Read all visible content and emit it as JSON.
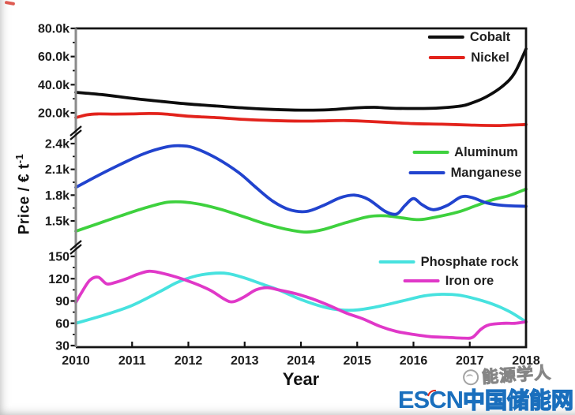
{
  "chart_data": {
    "type": "line",
    "title": "",
    "xlabel": "Year",
    "ylabel": "Price / € t",
    "ylabel_superscript": "-1",
    "grid": false,
    "legend_position": "inside top-right of each panel",
    "x_axis": {
      "min": 2010,
      "max": 2018,
      "tick_values": [
        2010,
        2011,
        2012,
        2013,
        2014,
        2015,
        2016,
        2017,
        2018
      ],
      "tick_labels": [
        "2010",
        "2011",
        "2012",
        "2013",
        "2014",
        "2015",
        "2016",
        "2017",
        "2018"
      ]
    },
    "axis_breaks": 2,
    "panels": [
      {
        "name": "top-panel",
        "ylim": [
          10000,
          80000
        ],
        "y_ticks": [
          {
            "value": 80000,
            "label": "80.0k"
          },
          {
            "value": 60000,
            "label": "60.0k"
          },
          {
            "value": 40000,
            "label": "40.0k"
          },
          {
            "value": 20000,
            "label": "20.0k"
          }
        ],
        "series": [
          {
            "name": "Cobalt",
            "color": "#0d0d0d",
            "points": [
              [
                2010,
                34600
              ],
              [
                2010.5,
                32800
              ],
              [
                2011,
                30300
              ],
              [
                2011.5,
                28200
              ],
              [
                2012,
                26300
              ],
              [
                2012.5,
                24800
              ],
              [
                2013,
                23400
              ],
              [
                2013.5,
                22400
              ],
              [
                2014,
                21900
              ],
              [
                2014.5,
                22200
              ],
              [
                2015,
                23600
              ],
              [
                2015.3,
                23900
              ],
              [
                2015.6,
                23300
              ],
              [
                2016,
                23100
              ],
              [
                2016.4,
                23300
              ],
              [
                2016.8,
                24600
              ],
              [
                2017,
                26500
              ],
              [
                2017.3,
                31500
              ],
              [
                2017.6,
                39500
              ],
              [
                2017.8,
                48500
              ],
              [
                2018,
                65400
              ]
            ]
          },
          {
            "name": "Nickel",
            "color": "#e2231c",
            "points": [
              [
                2010,
                16600
              ],
              [
                2010.2,
                18600
              ],
              [
                2010.4,
                19200
              ],
              [
                2010.7,
                19100
              ],
              [
                2011,
                19200
              ],
              [
                2011.3,
                19500
              ],
              [
                2011.6,
                19100
              ],
              [
                2012,
                17600
              ],
              [
                2012.5,
                16600
              ],
              [
                2013,
                15300
              ],
              [
                2013.5,
                14500
              ],
              [
                2014,
                14100
              ],
              [
                2014.4,
                14300
              ],
              [
                2014.8,
                14500
              ],
              [
                2015.2,
                13900
              ],
              [
                2015.6,
                13100
              ],
              [
                2016,
                12300
              ],
              [
                2016.5,
                11900
              ],
              [
                2017,
                11300
              ],
              [
                2017.5,
                11000
              ],
              [
                2018,
                11700
              ]
            ]
          }
        ]
      },
      {
        "name": "middle-panel",
        "ylim": [
          1300,
          2500
        ],
        "y_ticks": [
          {
            "value": 2400,
            "label": "2.4k"
          },
          {
            "value": 2100,
            "label": "2.1k"
          },
          {
            "value": 1800,
            "label": "1.8k"
          },
          {
            "value": 1500,
            "label": "1.5k"
          }
        ],
        "series": [
          {
            "name": "Aluminum",
            "color": "#3ed13e",
            "points": [
              [
                2010,
                1380
              ],
              [
                2010.4,
                1470
              ],
              [
                2010.8,
                1560
              ],
              [
                2011.2,
                1645
              ],
              [
                2011.6,
                1715
              ],
              [
                2011.9,
                1720
              ],
              [
                2012.2,
                1695
              ],
              [
                2012.6,
                1630
              ],
              [
                2013,
                1545
              ],
              [
                2013.4,
                1460
              ],
              [
                2013.8,
                1395
              ],
              [
                2014.1,
                1370
              ],
              [
                2014.4,
                1400
              ],
              [
                2014.8,
                1480
              ],
              [
                2015.2,
                1550
              ],
              [
                2015.5,
                1560
              ],
              [
                2015.8,
                1535
              ],
              [
                2016.1,
                1515
              ],
              [
                2016.4,
                1545
              ],
              [
                2016.8,
                1605
              ],
              [
                2017.1,
                1675
              ],
              [
                2017.4,
                1745
              ],
              [
                2017.7,
                1795
              ],
              [
                2018,
                1870
              ]
            ]
          },
          {
            "name": "Manganese",
            "color": "#2143ce",
            "points": [
              [
                2010,
                1890
              ],
              [
                2010.4,
                2030
              ],
              [
                2010.8,
                2160
              ],
              [
                2011.2,
                2280
              ],
              [
                2011.6,
                2360
              ],
              [
                2011.85,
                2375
              ],
              [
                2012.1,
                2350
              ],
              [
                2012.5,
                2230
              ],
              [
                2012.9,
                2060
              ],
              [
                2013.2,
                1890
              ],
              [
                2013.5,
                1730
              ],
              [
                2013.8,
                1630
              ],
              [
                2014.1,
                1610
              ],
              [
                2014.4,
                1680
              ],
              [
                2014.7,
                1770
              ],
              [
                2014.95,
                1800
              ],
              [
                2015.2,
                1750
              ],
              [
                2015.5,
                1610
              ],
              [
                2015.7,
                1580
              ],
              [
                2015.85,
                1680
              ],
              [
                2016,
                1760
              ],
              [
                2016.15,
                1690
              ],
              [
                2016.35,
                1630
              ],
              [
                2016.6,
                1680
              ],
              [
                2016.85,
                1780
              ],
              [
                2017.05,
                1770
              ],
              [
                2017.3,
                1710
              ],
              [
                2017.6,
                1680
              ],
              [
                2018,
                1670
              ]
            ]
          }
        ]
      },
      {
        "name": "bottom-panel",
        "ylim": [
          30,
          160
        ],
        "y_ticks": [
          {
            "value": 150,
            "label": "150"
          },
          {
            "value": 120,
            "label": "120"
          },
          {
            "value": 90,
            "label": "90"
          },
          {
            "value": 60,
            "label": "60"
          },
          {
            "value": 30,
            "label": "30"
          }
        ],
        "series": [
          {
            "name": "Phosphate rock",
            "color": "#47e2df",
            "points": [
              [
                2010,
                60
              ],
              [
                2010.5,
                71
              ],
              [
                2011,
                84
              ],
              [
                2011.5,
                103
              ],
              [
                2011.8,
                115
              ],
              [
                2012.1,
                123
              ],
              [
                2012.4,
                127
              ],
              [
                2012.7,
                127
              ],
              [
                2013,
                121
              ],
              [
                2013.3,
                113
              ],
              [
                2013.6,
                105
              ],
              [
                2014,
                92
              ],
              [
                2014.4,
                82
              ],
              [
                2014.7,
                78
              ],
              [
                2015,
                78
              ],
              [
                2015.4,
                83
              ],
              [
                2015.8,
                90
              ],
              [
                2016.2,
                97
              ],
              [
                2016.5,
                99
              ],
              [
                2016.8,
                98
              ],
              [
                2017.1,
                93
              ],
              [
                2017.4,
                86
              ],
              [
                2017.7,
                76
              ],
              [
                2018,
                62
              ]
            ]
          },
          {
            "name": "Iron ore",
            "color": "#e038c8",
            "points": [
              [
                2010,
                88
              ],
              [
                2010.1,
                101
              ],
              [
                2010.25,
                118
              ],
              [
                2010.4,
                122
              ],
              [
                2010.55,
                113
              ],
              [
                2010.7,
                115
              ],
              [
                2010.9,
                120
              ],
              [
                2011.1,
                126
              ],
              [
                2011.3,
                130
              ],
              [
                2011.5,
                128
              ],
              [
                2011.8,
                122
              ],
              [
                2012.1,
                114
              ],
              [
                2012.4,
                104
              ],
              [
                2012.65,
                92
              ],
              [
                2012.8,
                89
              ],
              [
                2013,
                96
              ],
              [
                2013.2,
                105
              ],
              [
                2013.4,
                108
              ],
              [
                2013.6,
                105
              ],
              [
                2013.9,
                100
              ],
              [
                2014.2,
                93
              ],
              [
                2014.5,
                84
              ],
              [
                2014.8,
                74
              ],
              [
                2015.1,
                66
              ],
              [
                2015.4,
                56
              ],
              [
                2015.7,
                49
              ],
              [
                2016,
                45
              ],
              [
                2016.3,
                42
              ],
              [
                2016.6,
                41
              ],
              [
                2016.9,
                40
              ],
              [
                2017.05,
                41
              ],
              [
                2017.2,
                52
              ],
              [
                2017.35,
                58
              ],
              [
                2017.6,
                60
              ],
              [
                2017.8,
                60
              ],
              [
                2018,
                62
              ]
            ]
          }
        ]
      }
    ]
  },
  "watermark": {
    "escn_text": "ESCN",
    "escn_color": "#1a6fbd",
    "cn_text": "中国储能网",
    "partner_text": "能源学人"
  }
}
